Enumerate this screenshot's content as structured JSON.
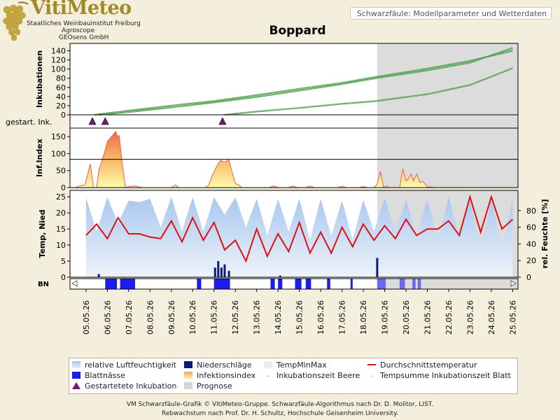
{
  "header": {
    "brand": "VitiMeteo",
    "org_line1": "Staatliches Weinbauinstitut Freiburg",
    "org_line2": "Agroscope",
    "org_line3": "GEOsens GmbH",
    "subtitle": "Schwarzfäule: Modellparameter und Wetterdaten",
    "station": "Boppard"
  },
  "legend": [
    {
      "label": "relative Luftfeuchtigkeit",
      "color": "#a9c8ee"
    },
    {
      "label": "Niederschläge",
      "color": "#0a1a80"
    },
    {
      "label": "TempMinMax",
      "color": "#ececec"
    },
    {
      "label": "Durchschnittstemperatur",
      "color": "#dd1111"
    },
    {
      "label": "Blattnässe",
      "color": "#1c1cf0"
    },
    {
      "label": "Infektionsindex",
      "color": "#f2b860"
    },
    {
      "label": "Inkubationszeit Beere",
      "color": "#dd1111"
    },
    {
      "label": "Tempsumme Inkubationszeit Blatt",
      "color": "#2e8b2e"
    },
    {
      "label": "Gestartetete Inkubation",
      "color": "#7a1470"
    },
    {
      "label": "Prognose",
      "color": "#d6d6d6"
    }
  ],
  "footer": {
    "line1": "VM Schwarzfäule-Grafik © VitiMeteo-Gruppe. Schwarzfäule-Algorithmus nach Dr. D. Molitor, LIST.",
    "line2": "Rebwachstum nach Prof. Dr. H. Schultz, Hochschule Geisenheim University."
  },
  "chart_data": {
    "type": "line",
    "x_dates": [
      "05.05.26",
      "06.05.26",
      "07.05.26",
      "08.05.26",
      "09.05.26",
      "10.05.26",
      "11.05.26",
      "12.05.26",
      "13.05.26",
      "14.05.26",
      "15.05.26",
      "16.05.26",
      "17.05.26",
      "18.05.26",
      "19.05.26",
      "20.05.26",
      "21.05.26",
      "22.05.26",
      "23.05.26",
      "24.05.26",
      "25.05.26"
    ],
    "prognosis_start": 18.65,
    "panels": [
      {
        "name": "inkubationen",
        "ylabel": "Inkubationen",
        "ylim": [
          0,
          150
        ],
        "yticks": [
          0,
          20,
          40,
          60,
          80,
          100,
          120,
          140
        ],
        "threshold": 0,
        "series": [
          {
            "name": "Inkubation 1",
            "color": "#2e8b2e",
            "x": [
              5.4,
              7,
              9,
              11,
              13,
              15,
              17,
              18.6,
              21,
              23,
              25
            ],
            "y": [
              0,
              9,
              20,
              30,
              43,
              57,
              70,
              83,
              101,
              118,
              140
            ]
          },
          {
            "name": "Inkubation 2",
            "color": "#2e8b2e",
            "x": [
              5.6,
              7,
              9,
              11,
              13,
              15,
              17,
              18.6,
              21,
              23,
              25
            ],
            "y": [
              0,
              6,
              16,
              27,
              39,
              53,
              67,
              80,
              97,
              114,
              146
            ]
          },
          {
            "name": "Inkubation 3",
            "color": "#2e8b2e",
            "x": [
              11.5,
              13,
              15,
              17,
              18.6,
              21,
              23,
              25
            ],
            "y": [
              0,
              7,
              15,
              24,
              30,
              45,
              65,
              102
            ]
          }
        ]
      },
      {
        "name": "gestartete",
        "ylabel": "gestart. Ink.",
        "markers_x": [
          5.3,
          5.9,
          11.4
        ]
      },
      {
        "name": "infektionsindex",
        "ylabel": "Inf.Index",
        "ylim": [
          0,
          175
        ],
        "yticks": [
          0,
          50,
          100,
          150
        ],
        "threshold": 83,
        "x": [
          4.5,
          4.7,
          4.95,
          5.1,
          5.2,
          5.35,
          5.5,
          5.6,
          5.7,
          5.85,
          6.0,
          6.2,
          6.4,
          6.5,
          6.55,
          6.7,
          6.85,
          7.0,
          7.3,
          7.6,
          9.0,
          9.2,
          9.35,
          10.6,
          10.75,
          10.95,
          11.1,
          11.3,
          11.5,
          11.7,
          11.85,
          12.0,
          12.15,
          12.3,
          13.6,
          13.8,
          14.0,
          14.5,
          14.7,
          14.9,
          15.3,
          15.5,
          15.7,
          16.0,
          16.8,
          17.0,
          17.2,
          17.8,
          18.0,
          18.2,
          18.5,
          18.65,
          18.8,
          18.95,
          19.1,
          19.2,
          19.4,
          19.7,
          19.85,
          20.0,
          20.1,
          20.25,
          20.35,
          20.5,
          20.65,
          20.8,
          21.0,
          21.4,
          25.0
        ],
        "y": [
          0,
          5,
          8,
          45,
          70,
          0,
          0,
          50,
          70,
          100,
          135,
          150,
          165,
          145,
          155,
          70,
          0,
          3,
          5,
          0,
          0,
          8,
          0,
          0,
          8,
          40,
          60,
          80,
          75,
          82,
          45,
          12,
          8,
          0,
          0,
          5,
          0,
          0,
          5,
          0,
          0,
          5,
          0,
          0,
          0,
          4,
          0,
          0,
          3,
          0,
          0,
          10,
          48,
          0,
          5,
          0,
          0,
          0,
          55,
          20,
          25,
          40,
          20,
          40,
          15,
          18,
          2,
          0,
          0
        ]
      },
      {
        "name": "wetter",
        "ylabel": "Temp, Nied",
        "ylabel_right": "rel. Feuchte [%]",
        "ylim": [
          0,
          27
        ],
        "yticks": [
          0,
          5,
          10,
          15,
          20,
          25
        ],
        "y2lim": [
          0,
          100
        ],
        "y2ticks": [
          0,
          20,
          40,
          60,
          80
        ],
        "series": [
          {
            "name": "Durchschnittstemperatur",
            "color": "#dd1111",
            "x": [
              5,
              5.5,
              6,
              6.5,
              7,
              7.5,
              8,
              8.5,
              9,
              9.5,
              10,
              10.5,
              11,
              11.5,
              12,
              12.5,
              13,
              13.5,
              14,
              14.5,
              15,
              15.5,
              16,
              16.5,
              17,
              17.5,
              18,
              18.5,
              19,
              19.5,
              20,
              20.5,
              21,
              21.5,
              22,
              22.5,
              23,
              23.5,
              24,
              24.5,
              25
            ],
            "y": [
              13,
              16.5,
              12,
              18.5,
              13.5,
              13.5,
              12.5,
              12,
              17.5,
              11,
              18.5,
              11.5,
              17,
              8.5,
              11.5,
              5,
              15,
              6.5,
              13.5,
              8,
              17,
              7.5,
              14,
              7.5,
              15.5,
              9.5,
              16.5,
              11.5,
              16,
              12,
              18,
              13,
              15,
              15,
              17.5,
              13,
              25,
              14,
              25,
              15,
              18
            ]
          },
          {
            "name": "relative Luftfeuchtigkeit",
            "color": "#a9c8ee",
            "x": [
              5,
              5.5,
              6,
              6.5,
              7,
              7.5,
              8,
              8.5,
              9,
              9.5,
              10,
              10.5,
              11,
              11.5,
              12,
              12.5,
              13,
              13.5,
              14,
              14.5,
              15,
              15.5,
              16,
              16.5,
              17,
              17.5,
              18,
              18.5,
              19,
              19.5,
              20,
              20.5,
              21,
              21.5,
              22,
              22.5,
              23,
              23.5,
              24,
              24.5,
              25
            ],
            "y": [
              95,
              55,
              96,
              65,
              92,
              90,
              94,
              60,
              96,
              55,
              96,
              55,
              96,
              75,
              96,
              60,
              94,
              50,
              94,
              55,
              94,
              45,
              94,
              50,
              92,
              45,
              93,
              55,
              95,
              55,
              93,
              50,
              93,
              45,
              96,
              50,
              94,
              35,
              94,
              35,
              93
            ]
          },
          {
            "name": "Niederschläge",
            "color": "#0a1a80",
            "bars_x": [
              5.6,
              11.05,
              11.2,
              11.35,
              11.5,
              11.7,
              14.1,
              18.65
            ],
            "bars_y": [
              1,
              3,
              5,
              3,
              4,
              2,
              0.5,
              6
            ]
          }
        ]
      },
      {
        "name": "blattnaesse",
        "ylabel": "BN",
        "intervals": [
          [
            5.9,
            6.45
          ],
          [
            6.6,
            7.3
          ],
          [
            10.2,
            10.4
          ],
          [
            11.0,
            11.75
          ],
          [
            13.65,
            13.85
          ],
          [
            14.0,
            14.2
          ],
          [
            14.8,
            15.1
          ],
          [
            15.3,
            15.55
          ],
          [
            16.3,
            16.45
          ],
          [
            17.4,
            17.5
          ],
          [
            18.65,
            19.05
          ],
          [
            19.7,
            19.95
          ],
          [
            20.3,
            20.45
          ],
          [
            20.55,
            20.7
          ]
        ]
      }
    ]
  }
}
